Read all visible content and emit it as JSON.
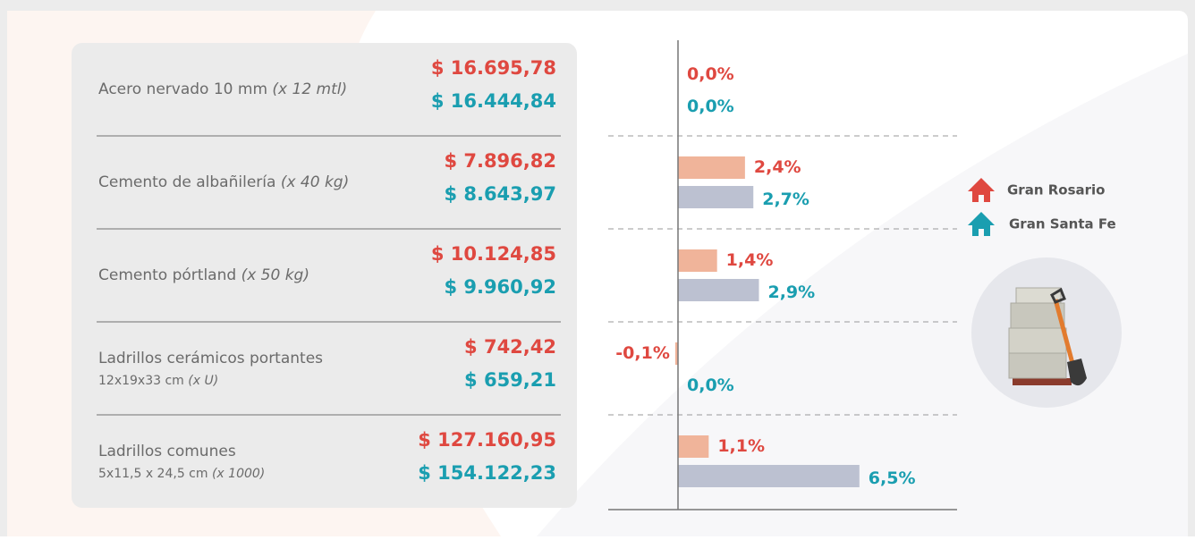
{
  "table": {
    "rows": [
      {
        "name": "Acero nervado 10 mm",
        "unit": "(x 12 mtl)",
        "prices": [
          "$ 16.695,78",
          "$ 16.444,84"
        ]
      },
      {
        "name": "Cemento de albañilería",
        "unit": "(x 40 kg)",
        "prices": [
          "$ 7.896,82",
          "$ 8.643,97"
        ]
      },
      {
        "name": "Cemento pórtland",
        "unit": "(x 50 kg)",
        "prices": [
          "$ 10.124,85",
          "$ 9.960,92"
        ]
      },
      {
        "name": "Ladrillos cerámicos portantes",
        "spec": "12x19x33 cm",
        "unit": "(x U)",
        "prices": [
          "$ 742,42",
          "$ 659,21"
        ]
      },
      {
        "name": "Ladrillos comunes",
        "spec": "5x11,5 x 24,5 cm",
        "unit": "(x 1000)",
        "prices": [
          "$ 127.160,95",
          "$ 154.122,23"
        ]
      }
    ]
  },
  "chart_data": {
    "type": "bar",
    "orientation": "horizontal",
    "xlim": [
      -2.5,
      10
    ],
    "series": [
      {
        "name": "Gran Rosario",
        "color": "#f0b49a",
        "label_color": "#df4840",
        "values": [
          0.0,
          2.4,
          1.4,
          -0.1,
          1.1
        ],
        "value_labels": [
          "0,0%",
          "2,4%",
          "1,4%",
          "-0,1%",
          "1,1%"
        ]
      },
      {
        "name": "Gran Santa Fe",
        "color": "#bcc1d1",
        "label_color": "#1a9eb0",
        "values": [
          0.0,
          2.7,
          2.9,
          0.0,
          6.5
        ],
        "value_labels": [
          "0,0%",
          "2,7%",
          "2,9%",
          "0,0%",
          "6,5%"
        ]
      }
    ]
  }
}
